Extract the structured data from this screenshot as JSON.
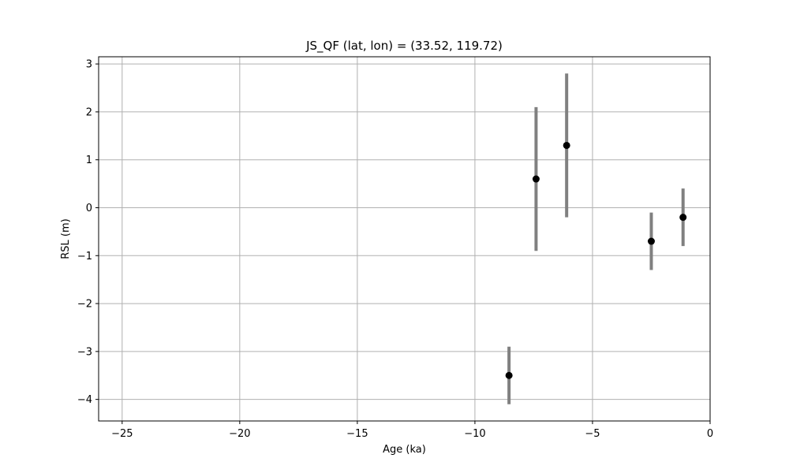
{
  "chart_data": {
    "type": "scatter",
    "title": "JS_QF (lat, lon) = (33.52, 119.72)",
    "xlabel": "Age (ka)",
    "ylabel": "RSL (m)",
    "xlim": [
      -26,
      0
    ],
    "ylim": [
      -4.45,
      3.15
    ],
    "xticks": [
      -25,
      -20,
      -15,
      -10,
      -5,
      0
    ],
    "yticks": [
      -4,
      -3,
      -2,
      -1,
      0,
      1,
      2,
      3
    ],
    "xtick_labels": [
      "−25",
      "−20",
      "−15",
      "−10",
      "−5",
      "0"
    ],
    "ytick_labels": [
      "−4",
      "−3",
      "−2",
      "−1",
      "0",
      "1",
      "2",
      "3"
    ],
    "grid": true,
    "colors": {
      "point": "#000000",
      "errorbar": "#808080",
      "grid": "#b0b0b0"
    },
    "points": [
      {
        "x": -8.55,
        "y": -3.5,
        "ylow": -4.1,
        "yhigh": -2.9
      },
      {
        "x": -7.4,
        "y": 0.6,
        "ylow": -0.9,
        "yhigh": 2.1
      },
      {
        "x": -6.1,
        "y": 1.3,
        "ylow": -0.2,
        "yhigh": 2.8
      },
      {
        "x": -2.5,
        "y": -0.7,
        "ylow": -1.3,
        "yhigh": -0.1
      },
      {
        "x": -1.15,
        "y": -0.2,
        "ylow": -0.8,
        "yhigh": 0.4
      }
    ]
  }
}
